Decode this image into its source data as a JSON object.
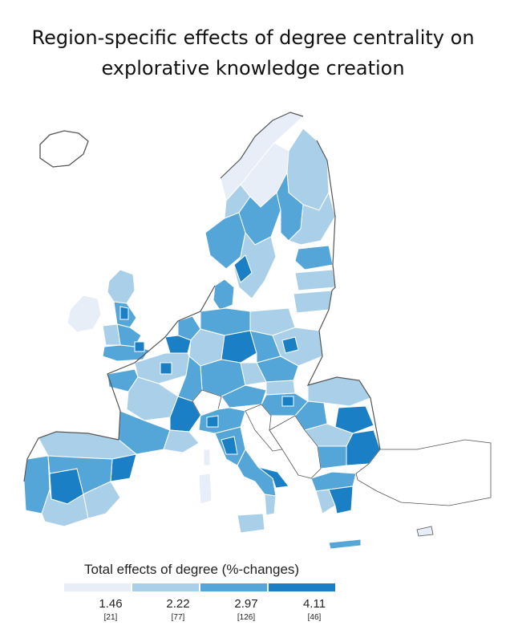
{
  "title": {
    "line1": "Region-specific effects of degree centrality on",
    "line2": "explorative knowledge creation"
  },
  "legend": {
    "title": "Total effects of degree (%-changes)",
    "classes": [
      {
        "value": "1.46",
        "count": "[21]",
        "color": "#e8eef7"
      },
      {
        "value": "2.22",
        "count": "[77]",
        "color": "#a9d0e8"
      },
      {
        "value": "2.97",
        "count": "[126]",
        "color": "#55a6d8"
      },
      {
        "value": "4.11",
        "count": "[46]",
        "color": "#1a7fc4"
      }
    ]
  },
  "map": {
    "outline_color": "#555555",
    "border_color": "#ffffff"
  }
}
